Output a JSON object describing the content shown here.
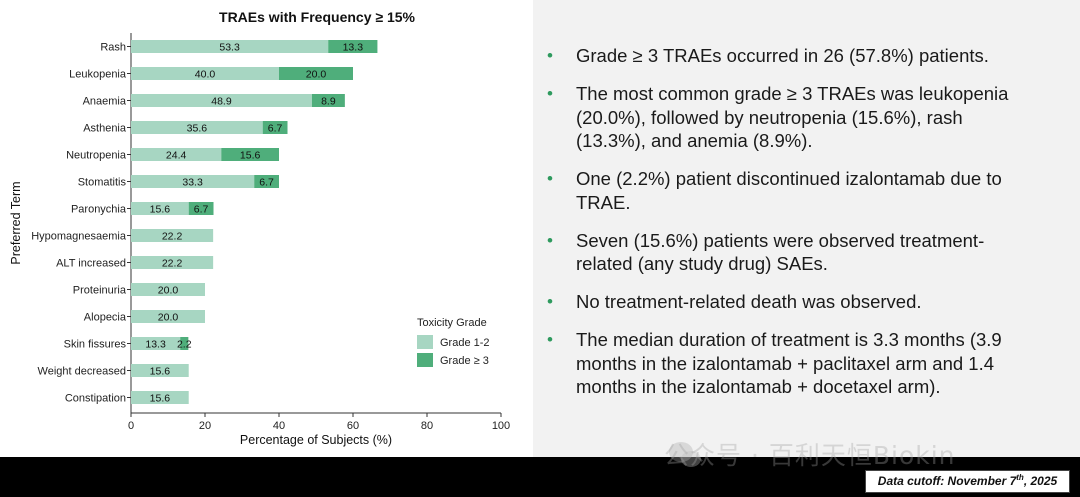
{
  "chart_data": {
    "type": "bar",
    "stacked": true,
    "orientation": "horizontal",
    "title": "TRAEs with Frequency ≥ 15%",
    "xlabel": "Percentage of Subjects (%)",
    "ylabel": "Preferred Term",
    "xlim": [
      0,
      100
    ],
    "xticks": [
      "0",
      "20",
      "40",
      "60",
      "80",
      "100"
    ],
    "categories": [
      "Rash",
      "Leukopenia",
      "Anaemia",
      "Asthenia",
      "Neutropenia",
      "Stomatitis",
      "Paronychia",
      "Hypomagnesaemia",
      "ALT increased",
      "Proteinuria",
      "Alopecia",
      "Skin fissures",
      "Weight decreased",
      "Constipation"
    ],
    "series": [
      {
        "name": "Grade 1-2",
        "color": "#a7d6c2",
        "values": [
          53.3,
          40.0,
          48.9,
          35.6,
          24.4,
          33.3,
          15.6,
          22.2,
          22.2,
          20.0,
          20.0,
          13.3,
          15.6,
          15.6
        ],
        "labels": [
          "53.3",
          "40.0",
          "48.9",
          "35.6",
          "24.4",
          "33.3",
          "15.6",
          "22.2",
          "22.2",
          "20.0",
          "20.0",
          "13.3",
          "15.6",
          "15.6"
        ]
      },
      {
        "name": "Grade ≥ 3",
        "color": "#4fae7b",
        "values": [
          13.3,
          20.0,
          8.9,
          6.7,
          15.6,
          6.7,
          6.7,
          0,
          0,
          0,
          0,
          2.2,
          0,
          0
        ],
        "labels": [
          "13.3",
          "20.0",
          "8.9",
          "6.7",
          "15.6",
          "6.7",
          "6.7",
          "",
          "",
          "",
          "",
          "2.2",
          "",
          ""
        ]
      }
    ],
    "legend": {
      "title": "Toxicity Grade",
      "placement": "bottom-right"
    }
  },
  "bullets": [
    "Grade ≥ 3 TRAEs occurred in 26 (57.8%) patients.",
    "The most common grade ≥ 3 TRAEs was leukopenia (20.0%), followed by neutropenia (15.6%), rash (13.3%), and anemia (8.9%).",
    "One (2.2%) patient discontinued izalontamab due to TRAE.",
    "Seven (15.6%) patients were observed treatment-related (any study drug) SAEs.",
    "No treatment-related death was observed.",
    "The median duration of treatment is 3.3 months (3.9 months in the izalontamab + paclitaxel arm and 1.4 months in the izalontamab + docetaxel arm)."
  ],
  "bullet_marker": "•",
  "watermark": "公众号 · 百利天恒Biokin",
  "watermark_icon": "wechat-icon",
  "cutoff": {
    "prefix": "Data cutoff: November 7",
    "sup": "th",
    "suffix": ", 2025"
  }
}
